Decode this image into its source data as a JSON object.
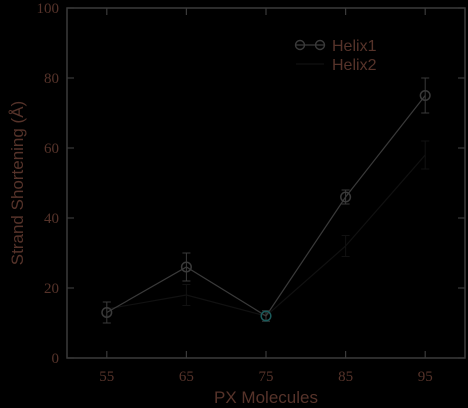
{
  "chart_data": {
    "type": "line",
    "xlabel": "PX Molecules",
    "ylabel": "Strand Shortening (Å)",
    "xlim": [
      50,
      100
    ],
    "ylim": [
      0,
      100
    ],
    "x_ticks": [
      55,
      65,
      75,
      85,
      95
    ],
    "y_ticks": [
      0,
      20,
      40,
      60,
      80,
      100
    ],
    "legend_position": "top-right",
    "grid": false,
    "series": [
      {
        "name": "Helix1",
        "marker": "circle",
        "color": "#3a3a3a",
        "x": [
          55,
          65,
          75,
          85,
          95
        ],
        "y": [
          13,
          26,
          12,
          46,
          75
        ],
        "err": [
          3,
          4,
          1.5,
          2,
          5
        ]
      },
      {
        "name": "Helix2",
        "marker": "none",
        "color": "#111111",
        "x": [
          55,
          65,
          75,
          85,
          95
        ],
        "y": [
          14,
          18,
          12,
          32,
          58
        ],
        "err": [
          2,
          3,
          1,
          3,
          4
        ]
      }
    ]
  },
  "colors": {
    "background": "#000000",
    "axis": "#3a3a3a",
    "text": "#56332a",
    "accent_marker": "#1a5a5a"
  }
}
